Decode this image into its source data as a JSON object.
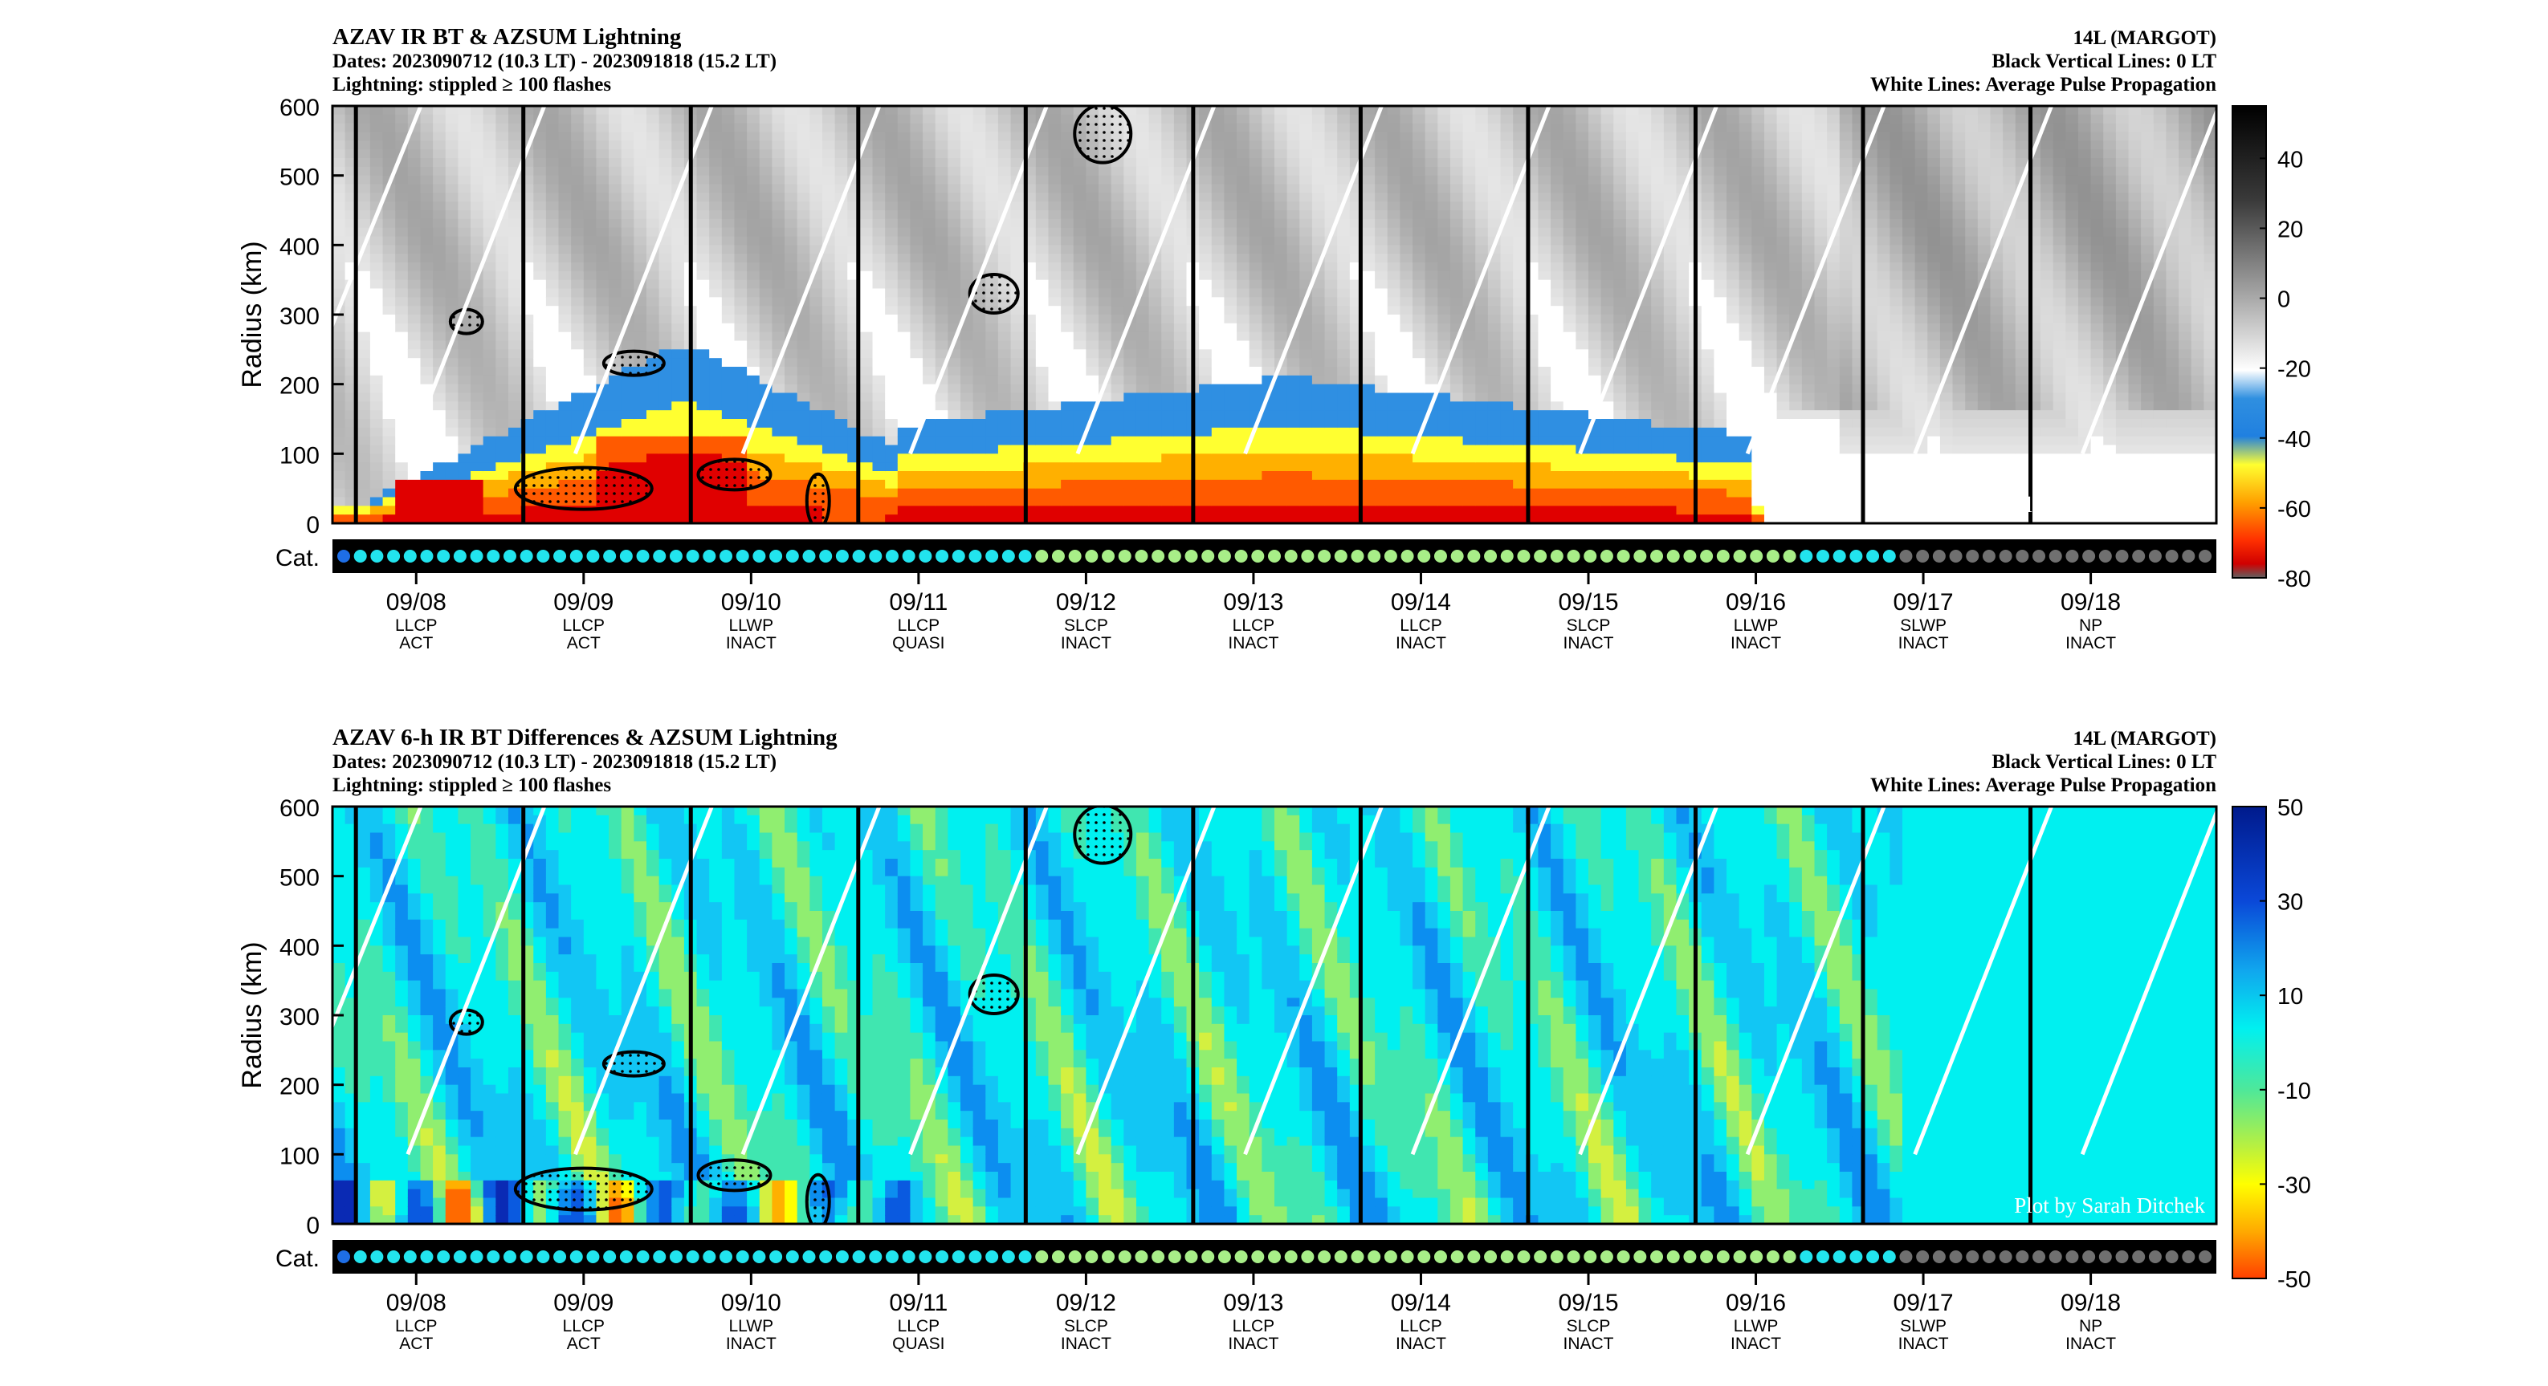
{
  "panels": [
    {
      "title": "AZAV IR BT & AZSUM Lightning",
      "dates": "Dates: 2023090712 (10.3 LT) - 2023091818 (15.2 LT)",
      "lightning_note": "Lightning: stippled ≥ 100 flashes",
      "storm": "14L (MARGOT)",
      "black_lines_note": "Black Vertical Lines: 0 LT",
      "white_lines_note": "White Lines: Average Pulse Propagation",
      "credit": "Plot by Sarah Ditchek",
      "cat_label": "Cat.",
      "colormap": "grayscale-jet-ir",
      "colorbar_ticks": [
        "40",
        "20",
        "0",
        "-20",
        "-40",
        "-60",
        "-80"
      ],
      "colorbar_range": [
        -80,
        55
      ]
    },
    {
      "title": "AZAV 6-h IR BT Differences & AZSUM Lightning",
      "dates": "Dates: 2023090712 (10.3 LT) - 2023091818 (15.2 LT)",
      "lightning_note": "Lightning: stippled ≥ 100 flashes",
      "storm": "14L (MARGOT)",
      "black_lines_note": "Black Vertical Lines: 0 LT",
      "white_lines_note": "White Lines: Average Pulse Propagation",
      "credit": "Plot by Sarah Ditchek",
      "cat_label": "Cat.",
      "colormap": "diff-jet",
      "colorbar_ticks": [
        "50",
        "30",
        "10",
        "-10",
        "-30",
        "-50"
      ],
      "colorbar_range": [
        -50,
        50
      ]
    }
  ],
  "chart_data": {
    "type": "heatmap",
    "ylabel": "Radius (km)",
    "y_ticks": [
      "600",
      "500",
      "400",
      "300",
      "200",
      "100",
      "0"
    ],
    "ylim": [
      0,
      600
    ],
    "x_days": [
      {
        "date": "09/08",
        "stage": "LLCP",
        "activity": "ACT"
      },
      {
        "date": "09/09",
        "stage": "LLCP",
        "activity": "ACT"
      },
      {
        "date": "09/10",
        "stage": "LLWP",
        "activity": "INACT"
      },
      {
        "date": "09/11",
        "stage": "LLCP",
        "activity": "QUASI"
      },
      {
        "date": "09/12",
        "stage": "SLCP",
        "activity": "INACT"
      },
      {
        "date": "09/13",
        "stage": "LLCP",
        "activity": "INACT"
      },
      {
        "date": "09/14",
        "stage": "LLCP",
        "activity": "INACT"
      },
      {
        "date": "09/15",
        "stage": "SLCP",
        "activity": "INACT"
      },
      {
        "date": "09/16",
        "stage": "LLWP",
        "activity": "INACT"
      },
      {
        "date": "09/17",
        "stage": "SLWP",
        "activity": "INACT"
      },
      {
        "date": "09/18",
        "stage": "NP",
        "activity": "INACT"
      }
    ],
    "time_start_day": 7.5,
    "time_end_day": 18.75,
    "n_category_dots": 113,
    "category_colors": {
      "blue": "#1e6ee6",
      "cyan": "#22e4ee",
      "green": "#a8ee88",
      "gray": "#707070"
    },
    "category_sequence_summary": {
      "blue_until": 1,
      "cyan_until": 42,
      "green_until": 88,
      "cyan2_until": 94,
      "gray_from": 94
    }
  }
}
